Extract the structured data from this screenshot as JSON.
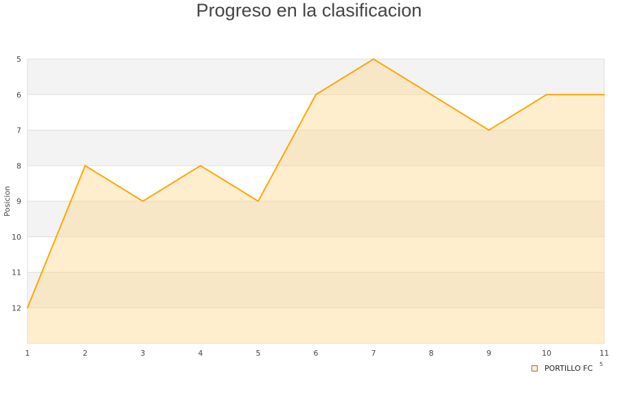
{
  "chart_data": {
    "type": "area",
    "title": "Progreso en la clasificacion",
    "ylabel": "Posicion",
    "xlabel_fragment": "5",
    "x": [
      1,
      2,
      3,
      4,
      5,
      6,
      7,
      8,
      9,
      10,
      11
    ],
    "ylim": [
      5,
      13
    ],
    "y_inverted": true,
    "yticks": [
      5,
      6,
      7,
      8,
      9,
      10,
      11,
      12
    ],
    "grid": true,
    "legend_position": "bottom-right",
    "series": [
      {
        "name": "PORTILLO FC",
        "values": [
          12,
          8,
          9,
          8,
          9,
          6,
          5,
          6,
          7,
          6,
          6
        ],
        "color": "#ffa500",
        "fill": "#ffeccc"
      }
    ]
  }
}
